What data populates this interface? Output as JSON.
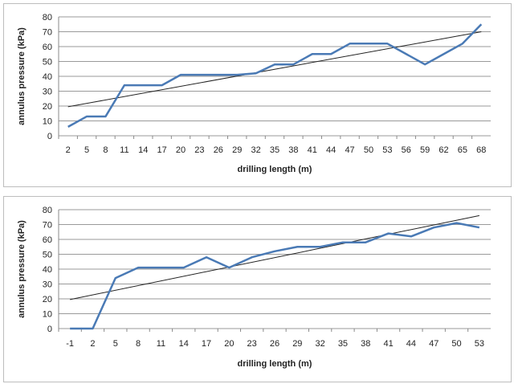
{
  "chart_data": [
    {
      "type": "line",
      "xlabel": "drilling length (m)",
      "ylabel": "annulus pressure (kPa)",
      "ylim": [
        0,
        80
      ],
      "yticks": [
        0,
        10,
        20,
        30,
        40,
        50,
        60,
        70,
        80
      ],
      "categories": [
        "2",
        "5",
        "8",
        "11",
        "14",
        "17",
        "20",
        "23",
        "26",
        "29",
        "32",
        "35",
        "38",
        "41",
        "44",
        "47",
        "50",
        "53",
        "56",
        "59",
        "62",
        "65",
        "68"
      ],
      "series": [
        {
          "values": [
            6,
            13,
            13,
            34,
            34,
            34,
            41,
            41,
            41,
            41,
            42,
            48,
            48,
            55,
            55,
            62,
            62,
            62,
            55,
            48,
            55,
            62,
            75
          ],
          "color": "#4a7ab5"
        }
      ],
      "trendline": {
        "start": 19.5,
        "end": 70,
        "color": "#222222"
      },
      "grid": true,
      "legend": "none"
    },
    {
      "type": "line",
      "xlabel": "drilling length (m)",
      "ylabel": "annulus pressure (kPa)",
      "ylim": [
        0,
        80
      ],
      "yticks": [
        0,
        10,
        20,
        30,
        40,
        50,
        60,
        70,
        80
      ],
      "categories": [
        "-1",
        "2",
        "5",
        "8",
        "11",
        "14",
        "17",
        "20",
        "23",
        "26",
        "29",
        "32",
        "35",
        "38",
        "41",
        "44",
        "47",
        "50",
        "53"
      ],
      "series": [
        {
          "values": [
            0,
            0,
            34,
            41,
            41,
            41,
            48,
            41,
            48,
            52,
            55,
            55,
            58,
            58,
            64,
            62,
            68,
            71,
            68
          ],
          "color": "#4a7ab5"
        }
      ],
      "trendline": {
        "start": 19.5,
        "end": 76,
        "color": "#222222"
      },
      "grid": true,
      "legend": "none"
    }
  ]
}
